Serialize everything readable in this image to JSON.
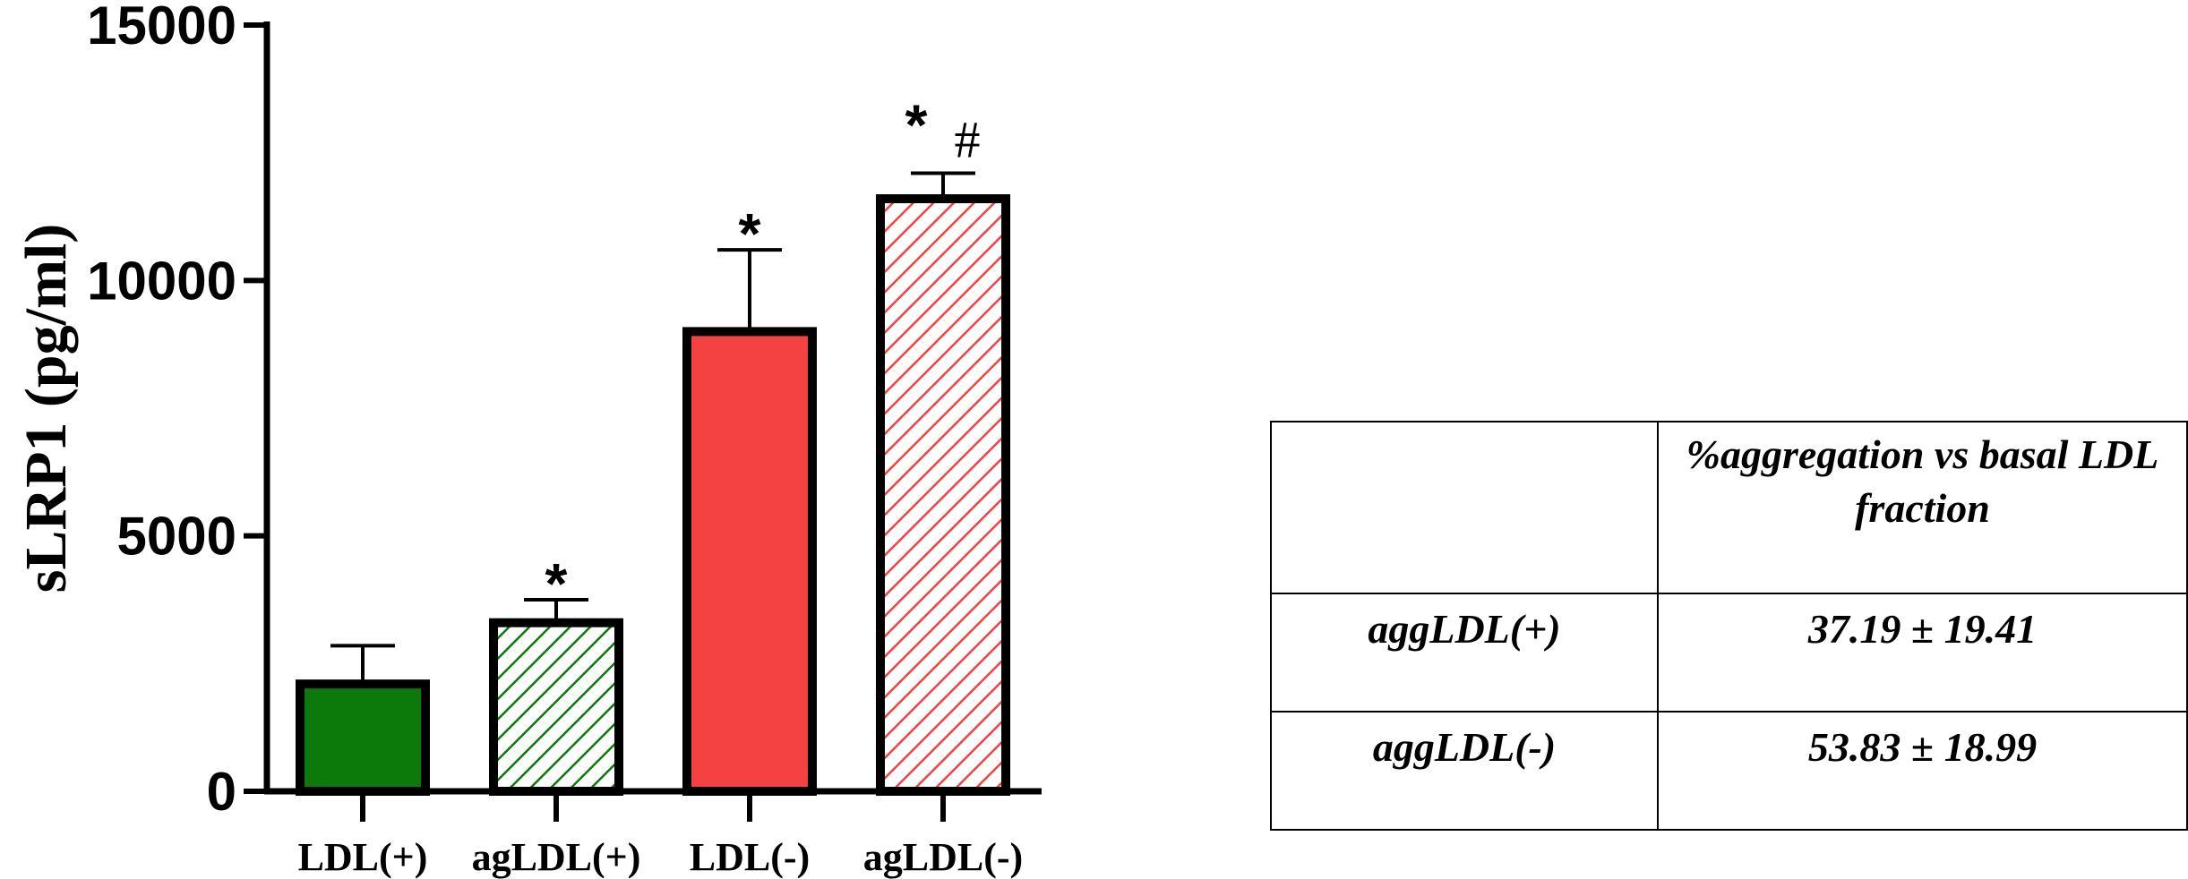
{
  "chart_data": {
    "type": "bar",
    "ylabel": "sLRP1 (pg/ml)",
    "xlabel": "",
    "ylim": [
      0,
      15000
    ],
    "yticks": [
      0,
      5000,
      10000,
      15000
    ],
    "grid": false,
    "categories": [
      "LDL(+)",
      "agLDL(+)",
      "LDL(-)",
      "agLDL(-)"
    ],
    "values": [
      2100,
      3300,
      9000,
      11600
    ],
    "errors": [
      750,
      450,
      1600,
      500
    ],
    "fills": [
      "solid",
      "hatched",
      "solid",
      "hatched"
    ],
    "colors": [
      "#0b7a0b",
      "#0b7a0b",
      "#f44242",
      "#f44242"
    ],
    "annotations": [
      "",
      "*",
      "*",
      "* #"
    ]
  },
  "table": {
    "header": [
      "",
      "%aggregation vs basal LDL fraction"
    ],
    "rows": [
      [
        "aggLDL(+)",
        "37.19 ± 19.41"
      ],
      [
        "aggLDL(-)",
        "53.83 ± 18.99"
      ]
    ]
  }
}
